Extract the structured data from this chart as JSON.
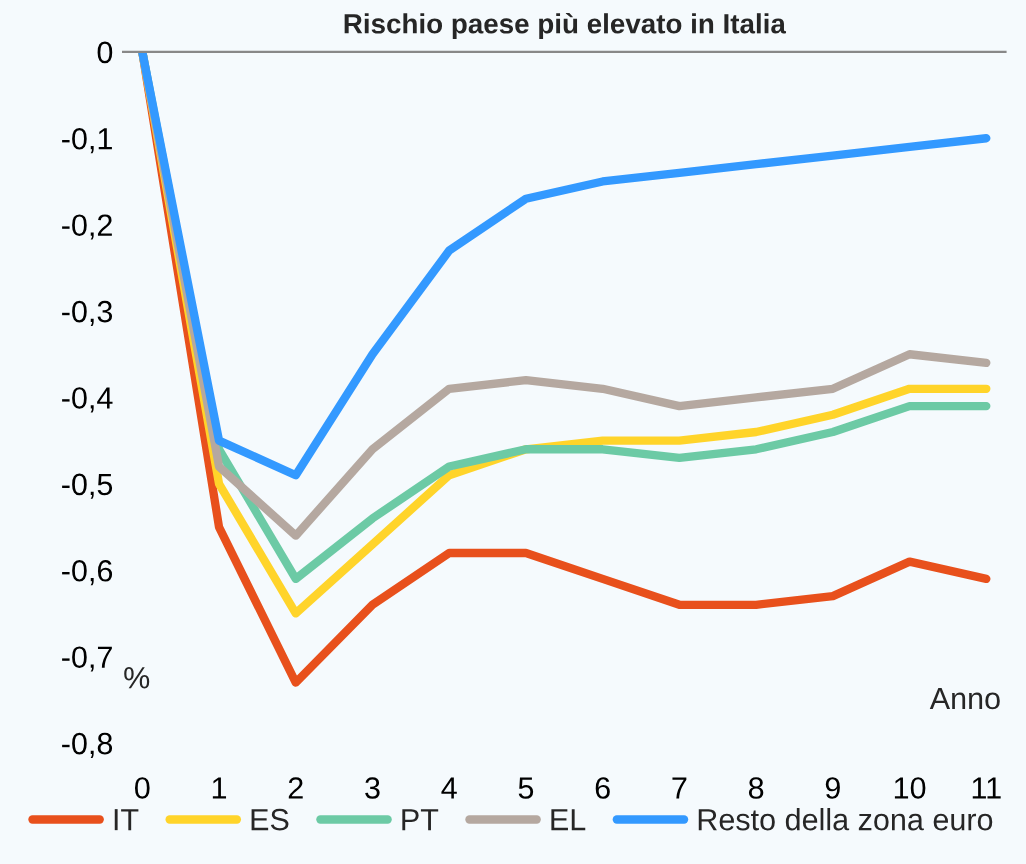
{
  "chart_data": {
    "type": "line",
    "title": "Rischio paese più elevato in Italia",
    "xlabel": "Anno",
    "ylabel": "%",
    "categories": [
      "0",
      "1",
      "2",
      "3",
      "4",
      "5",
      "6",
      "7",
      "8",
      "9",
      "10",
      "11"
    ],
    "series": [
      {
        "name": "IT",
        "color": "#e8501c",
        "values": [
          0,
          -0.55,
          -0.73,
          -0.64,
          -0.58,
          -0.58,
          -0.61,
          -0.64,
          -0.64,
          -0.63,
          -0.59,
          -0.61
        ]
      },
      {
        "name": "ES",
        "color": "#ffd42a",
        "values": [
          0,
          -0.5,
          -0.65,
          -0.57,
          -0.49,
          -0.46,
          -0.45,
          -0.45,
          -0.44,
          -0.42,
          -0.39,
          -0.39
        ]
      },
      {
        "name": "PT",
        "color": "#6ccaa5",
        "values": [
          0,
          -0.46,
          -0.61,
          -0.54,
          -0.48,
          -0.46,
          -0.46,
          -0.47,
          -0.46,
          -0.44,
          -0.41,
          -0.41
        ]
      },
      {
        "name": "EL",
        "color": "#b5a8a0",
        "values": [
          0,
          -0.48,
          -0.56,
          -0.46,
          -0.39,
          -0.38,
          -0.39,
          -0.41,
          -0.4,
          -0.39,
          -0.35,
          -0.36
        ]
      },
      {
        "name": "Resto della zona euro",
        "color": "#3399ff",
        "values": [
          0,
          -0.45,
          -0.49,
          -0.35,
          -0.23,
          -0.17,
          -0.15,
          -0.14,
          -0.13,
          -0.12,
          -0.11,
          -0.1
        ]
      }
    ],
    "ylim": [
      -0.8,
      0
    ],
    "yticks": [
      {
        "value": -0.8,
        "label": "-0,8"
      },
      {
        "value": -0.7,
        "label": "-0,7"
      },
      {
        "value": -0.6,
        "label": "-0,6"
      },
      {
        "value": -0.5,
        "label": "-0,5"
      },
      {
        "value": -0.4,
        "label": "-0,4"
      },
      {
        "value": -0.3,
        "label": "-0,3"
      },
      {
        "value": -0.2,
        "label": "-0,2"
      },
      {
        "value": -0.1,
        "label": "-0,1"
      },
      {
        "value": 0,
        "label": "0"
      }
    ],
    "grid": false,
    "legend": "bottom",
    "marker": "none",
    "line_style": "solid"
  }
}
